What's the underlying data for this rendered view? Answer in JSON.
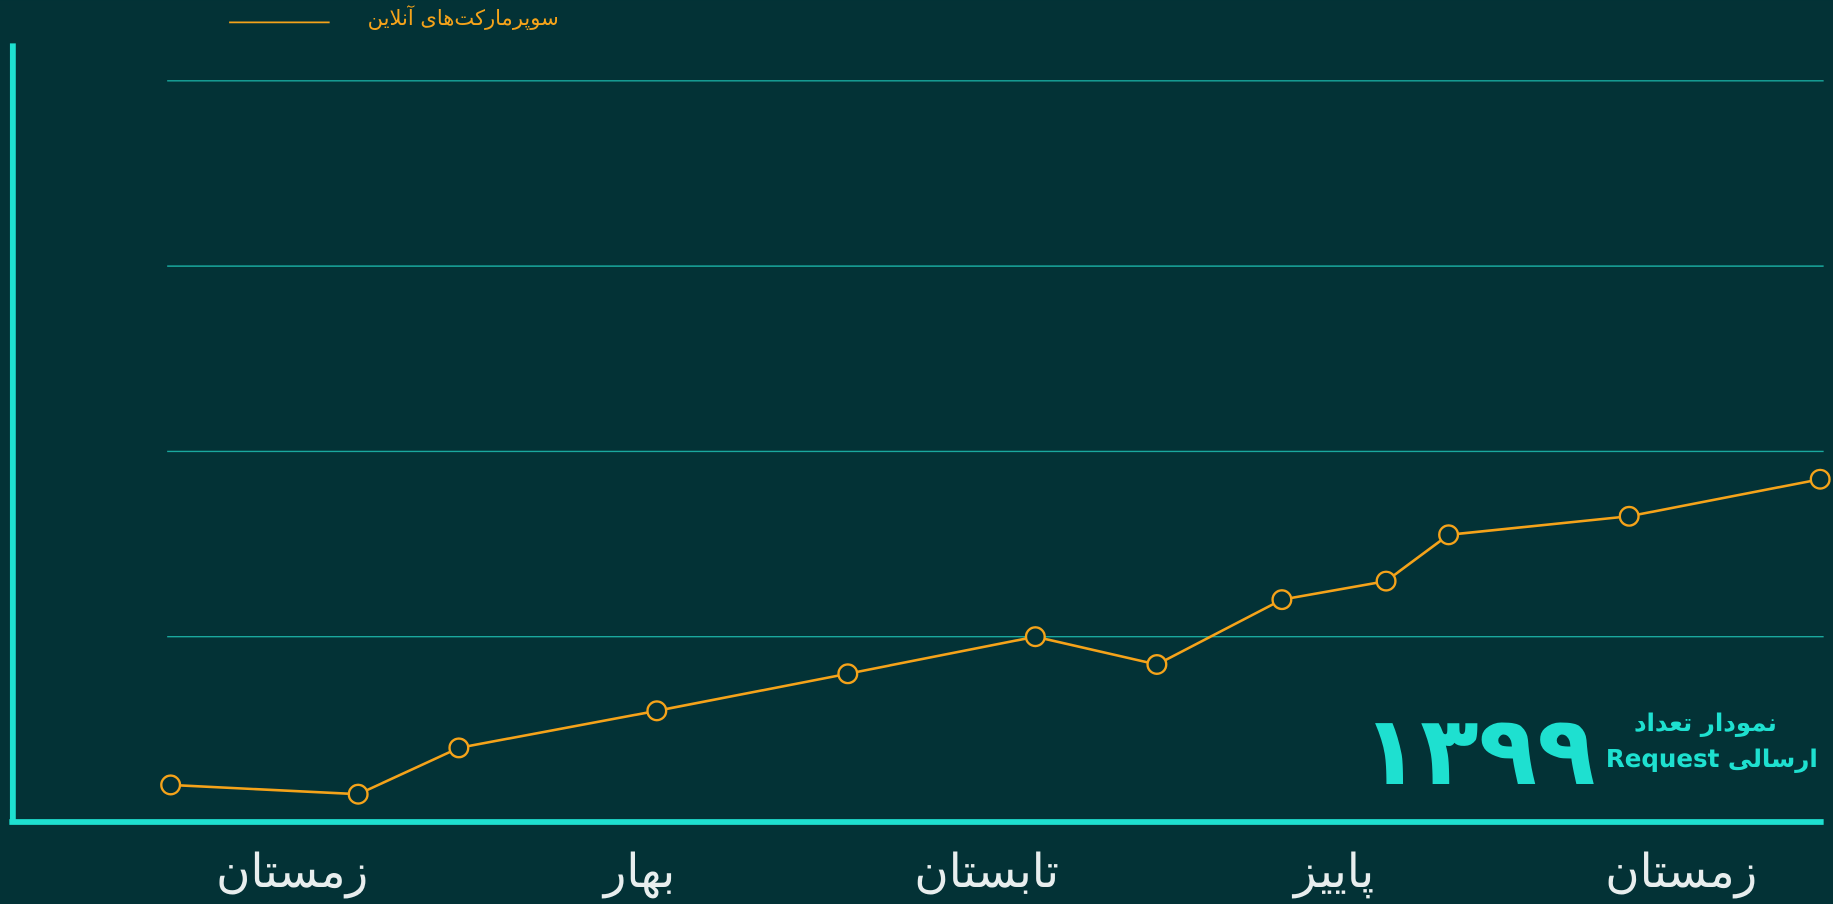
{
  "chart_data": {
    "type": "line",
    "legend_label": "سوپرمارکت‌های آنلاین",
    "title_lines": [
      "نمودار تعداد",
      "Request ارسالی"
    ],
    "year_label": "۱۳۹۹",
    "x": [
      -0.35,
      0.19,
      0.48,
      1.05,
      1.6,
      2.14,
      2.49,
      2.85,
      3.15,
      3.33,
      3.85,
      4.4
    ],
    "series": [
      {
        "name": "سوپرمارکت‌های آنلاین",
        "color": "#f5a31a",
        "values": [
          0.2,
          0.15,
          0.4,
          0.6,
          0.8,
          1.0,
          0.85,
          1.2,
          1.3,
          1.55,
          1.65,
          1.85
        ]
      }
    ],
    "xlim": [
      -0.36,
      4.41
    ],
    "xticks": [
      {
        "value": 0,
        "label": "زمستان"
      },
      {
        "value": 1,
        "label": "بهار"
      },
      {
        "value": 2,
        "label": "تابستان"
      },
      {
        "value": 3,
        "label": "پاییز"
      },
      {
        "value": 4,
        "label": "زمستان"
      }
    ],
    "ylim": [
      0,
      4
    ],
    "yticks": [
      1,
      2,
      3,
      4
    ],
    "grid": true
  }
}
